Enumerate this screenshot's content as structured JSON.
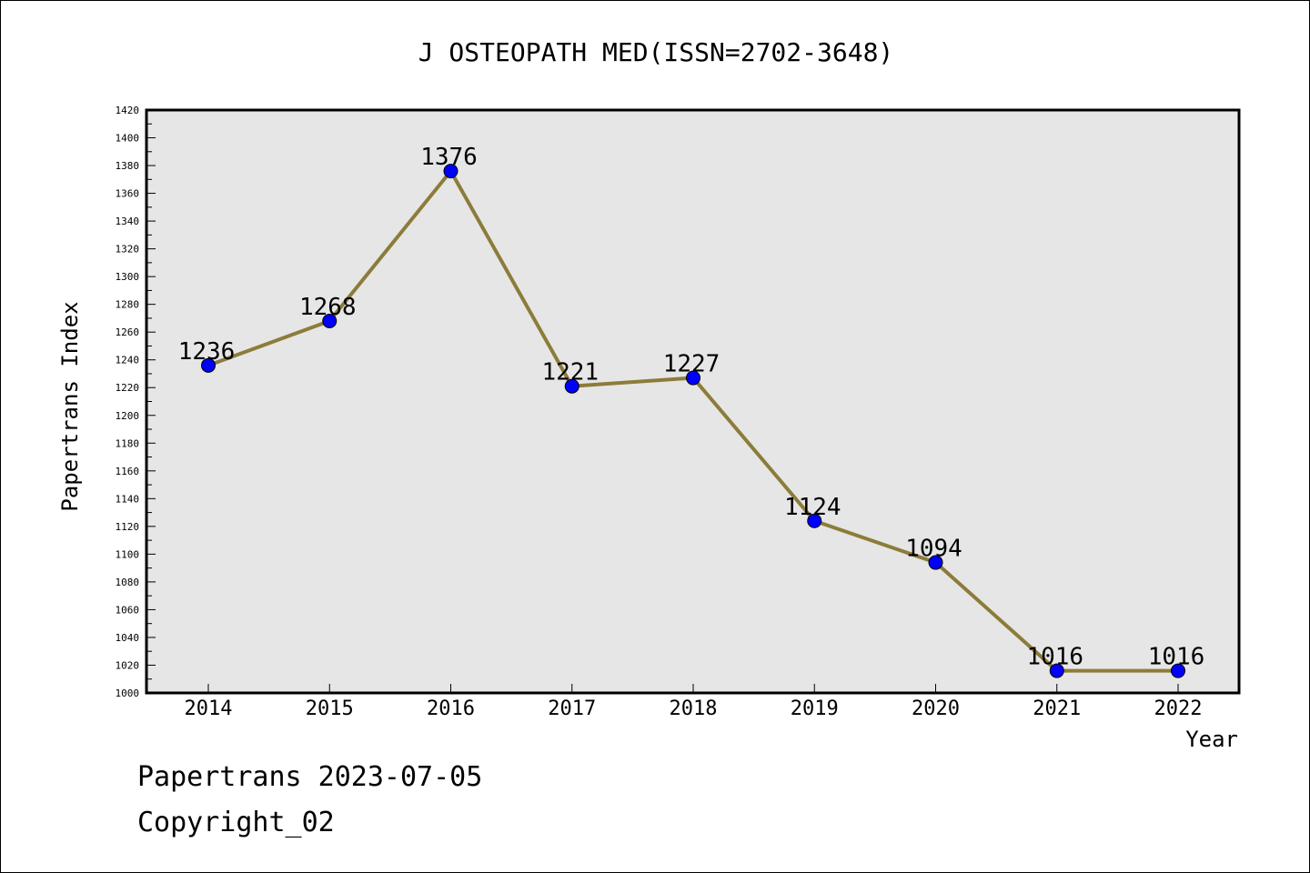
{
  "chart_data": {
    "type": "line",
    "title": "J OSTEOPATH MED(ISSN=2702-3648)",
    "xlabel": "Year",
    "ylabel": "Papertrans Index",
    "categories": [
      "2014",
      "2015",
      "2016",
      "2017",
      "2018",
      "2019",
      "2020",
      "2021",
      "2022"
    ],
    "series": [
      {
        "values": [
          1236,
          1268,
          1376,
          1221,
          1227,
          1124,
          1094,
          1016,
          1016
        ]
      }
    ],
    "ylim": [
      1000,
      1420
    ],
    "ytick_step": 20,
    "y_ticks": [
      "1000",
      "1020",
      "1040",
      "1060",
      "1080",
      "1100",
      "1120",
      "1140",
      "1160",
      "1180",
      "1200",
      "1220",
      "1240",
      "1260",
      "1280",
      "1300",
      "1320",
      "1340",
      "1360",
      "1380",
      "1400",
      "1420"
    ],
    "grid": false,
    "colors": {
      "plot_background": "#e6e6e6",
      "line": "#8c7c3a",
      "marker": "#0000ff"
    }
  },
  "footer": {
    "line1": "Papertrans 2023-07-05",
    "line2": "Copyright_02"
  }
}
